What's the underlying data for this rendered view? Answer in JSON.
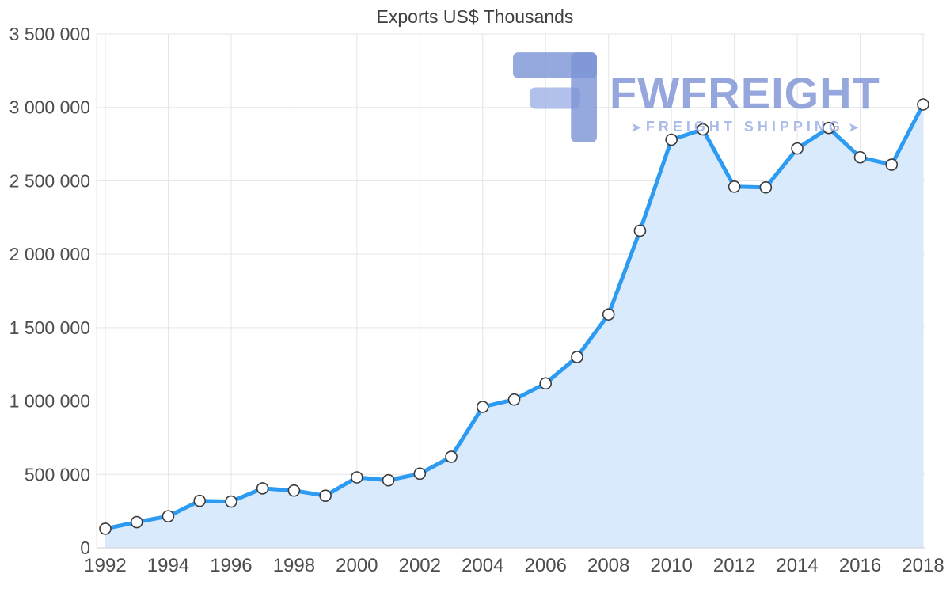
{
  "chart_data": {
    "type": "area",
    "title": "Exports US$ Thousands",
    "xlabel": "",
    "ylabel": "",
    "x": [
      1992,
      1993,
      1994,
      1995,
      1996,
      1997,
      1998,
      1999,
      2000,
      2001,
      2002,
      2003,
      2004,
      2005,
      2006,
      2007,
      2008,
      2009,
      2010,
      2011,
      2012,
      2013,
      2014,
      2015,
      2016,
      2017,
      2018
    ],
    "series": [
      {
        "name": "Exports US$ Thousands",
        "values": [
          130000,
          175000,
          215000,
          320000,
          315000,
          405000,
          390000,
          355000,
          480000,
          460000,
          505000,
          620000,
          960000,
          1010000,
          1120000,
          1300000,
          1590000,
          2160000,
          2780000,
          2850000,
          2460000,
          2455000,
          2720000,
          2860000,
          2660000,
          2610000,
          3020000
        ]
      }
    ],
    "ylim": [
      0,
      3500000
    ],
    "xlim": [
      1992,
      2018
    ],
    "grid": true,
    "legend": "none",
    "y_ticks": [
      {
        "value": 0,
        "label": "0"
      },
      {
        "value": 500000,
        "label": "500 000"
      },
      {
        "value": 1000000,
        "label": "1 000 000"
      },
      {
        "value": 1500000,
        "label": "1 500 000"
      },
      {
        "value": 2000000,
        "label": "2 000 000"
      },
      {
        "value": 2500000,
        "label": "2 500 000"
      },
      {
        "value": 3000000,
        "label": "3 000 000"
      },
      {
        "value": 3500000,
        "label": "3 500 000"
      }
    ],
    "x_tick_labels": [
      "1992",
      "1994",
      "1996",
      "1998",
      "2000",
      "2002",
      "2004",
      "2006",
      "2008",
      "2010",
      "2012",
      "2014",
      "2016",
      "2018"
    ],
    "colors": {
      "line": "#2d9bf2",
      "area_fill": "#d8eafb",
      "marker_fill": "#ffffff",
      "marker_stroke": "#3a3a3a",
      "grid": "#e5e5e5",
      "axis": "#cfcfcf",
      "tick_text": "#4d4d4d"
    }
  },
  "watermark": {
    "brand": "FWFREIGHT",
    "tagline": "FREIGHT SHIPPING",
    "arrow": "➤",
    "brand_color": "#728ad1"
  }
}
